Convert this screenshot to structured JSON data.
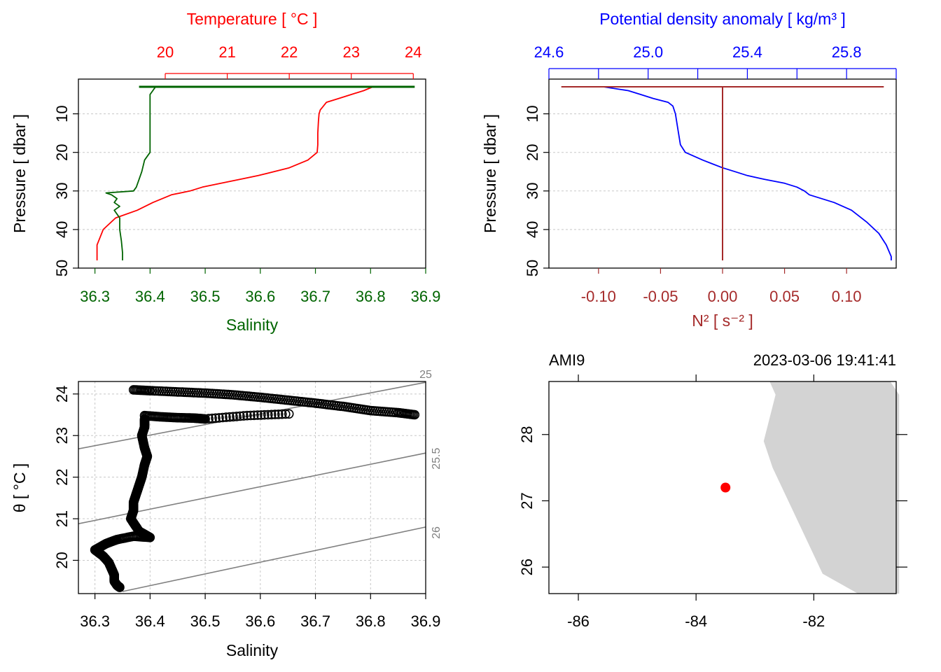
{
  "colors": {
    "temperature": "#ff0000",
    "salinity": "#006400",
    "density": "#0000ff",
    "n2": "#a52a2a",
    "isopycnal": "#808080",
    "land": "#d3d3d3",
    "station": "#ff0000"
  },
  "chart_data": [
    {
      "type": "line",
      "name": "profile-temperature-salinity",
      "top_axis_title": "Temperature [ °C ]",
      "bottom_axis_title": "Salinity",
      "ylabel": "Pressure [ dbar ]",
      "ylim": [
        50,
        1
      ],
      "y_ticks": [
        "10",
        "20",
        "30",
        "40",
        "50"
      ],
      "top_ticks": [
        "20",
        "21",
        "22",
        "23",
        "24"
      ],
      "bottom_ticks": [
        "36.3",
        "36.4",
        "36.5",
        "36.6",
        "36.7",
        "36.8",
        "36.9"
      ],
      "temperature_range": [
        18.6,
        24.2
      ],
      "salinity_range": [
        36.27,
        36.9
      ],
      "series": [
        {
          "name": "Temperature",
          "pressure": [
            3,
            4,
            5,
            6,
            7,
            8,
            9,
            10,
            12,
            15,
            18,
            20,
            22,
            24,
            26,
            28,
            29,
            30,
            31,
            33,
            35,
            37,
            40,
            44,
            48
          ],
          "values": [
            23.35,
            23.2,
            23.0,
            22.8,
            22.6,
            22.55,
            22.5,
            22.48,
            22.47,
            22.46,
            22.46,
            22.45,
            22.3,
            22.0,
            21.5,
            20.9,
            20.6,
            20.4,
            20.1,
            19.8,
            19.55,
            19.2,
            19.0,
            18.9,
            18.9
          ]
        },
        {
          "name": "Salinity",
          "pressure": [
            3,
            5,
            7,
            10,
            15,
            20,
            22,
            25,
            27,
            29,
            30,
            30.5,
            31,
            32,
            33,
            34,
            35,
            37,
            40,
            43,
            46,
            48
          ],
          "values": [
            36.41,
            36.4,
            36.4,
            36.4,
            36.4,
            36.4,
            36.39,
            36.385,
            36.38,
            36.375,
            36.37,
            36.32,
            36.33,
            36.34,
            36.335,
            36.345,
            36.335,
            36.345,
            36.345,
            36.348,
            36.35,
            36.35
          ]
        },
        {
          "name": "Salinity surface spike",
          "pressure": [
            3,
            3
          ],
          "values": [
            36.38,
            36.88
          ]
        }
      ]
    },
    {
      "type": "line",
      "name": "profile-density-n2",
      "top_axis_title": "Potential density anomaly [ kg/m³ ]",
      "bottom_axis_title": "N² [ s⁻² ]",
      "ylabel": "Pressure [ dbar ]",
      "ylim": [
        50,
        1
      ],
      "y_ticks": [
        "10",
        "20",
        "30",
        "40",
        "50"
      ],
      "top_ticks": [
        "24.6",
        "25.0",
        "25.4",
        "25.8"
      ],
      "bottom_ticks": [
        "-0.10",
        "-0.05",
        "0.00",
        "0.05",
        "0.10"
      ],
      "density_range": [
        24.6,
        26.0
      ],
      "n2_range": [
        -0.14,
        0.14
      ],
      "series": [
        {
          "name": "Potential density anomaly",
          "pressure": [
            3,
            4,
            5,
            6,
            7,
            8,
            10,
            14,
            18,
            20,
            22,
            24,
            25,
            26,
            27,
            28,
            29,
            30,
            31,
            32,
            33,
            35,
            38,
            41,
            44,
            47,
            48
          ],
          "values": [
            24.82,
            24.92,
            24.97,
            25.02,
            25.08,
            25.1,
            25.11,
            25.12,
            25.13,
            25.15,
            25.22,
            25.3,
            25.35,
            25.4,
            25.47,
            25.55,
            25.6,
            25.63,
            25.65,
            25.7,
            25.75,
            25.82,
            25.88,
            25.93,
            25.96,
            25.98,
            25.98
          ]
        },
        {
          "name": "N2",
          "pressure": [
            3,
            10,
            20,
            30,
            40,
            48
          ],
          "values": [
            0.0,
            0.0,
            0.0,
            0.0,
            0.0,
            0.0
          ]
        },
        {
          "name": "N2 surface spike",
          "pressure": [
            3,
            3
          ],
          "values": [
            -0.13,
            0.13
          ]
        }
      ]
    },
    {
      "type": "scatter",
      "name": "ts-diagram",
      "xlabel": "Salinity",
      "ylabel": "θ [ °C ]",
      "xlim": [
        36.27,
        36.9
      ],
      "ylim": [
        19.2,
        24.3
      ],
      "x_ticks": [
        "36.3",
        "36.4",
        "36.5",
        "36.6",
        "36.7",
        "36.8",
        "36.9"
      ],
      "y_ticks": [
        "20",
        "21",
        "22",
        "23",
        "24"
      ],
      "isopycnals": [
        {
          "label": "25",
          "x": [
            36.27,
            36.9
          ],
          "y": [
            22.68,
            24.28
          ]
        },
        {
          "label": "25.5",
          "x": [
            36.27,
            36.9
          ],
          "y": [
            20.88,
            22.58
          ]
        },
        {
          "label": "26",
          "x": [
            36.35,
            36.9
          ],
          "y": [
            19.25,
            20.8
          ]
        }
      ],
      "series": [
        {
          "name": "upper-surface-branch",
          "x": [
            36.37,
            36.4,
            36.45,
            36.5,
            36.55,
            36.6,
            36.65,
            36.7,
            36.75,
            36.8,
            36.85,
            36.88
          ],
          "y": [
            24.1,
            24.08,
            24.05,
            24.02,
            23.98,
            23.92,
            23.85,
            23.78,
            23.7,
            23.6,
            23.55,
            23.5
          ]
        },
        {
          "name": "lower-surface-branch",
          "x": [
            36.39,
            36.42,
            36.45,
            36.48,
            36.5,
            36.576,
            36.652
          ],
          "y": [
            23.48,
            23.45,
            23.43,
            23.42,
            23.4,
            23.48,
            23.52
          ]
        },
        {
          "name": "deep-column",
          "x": [
            36.39,
            36.39,
            36.385,
            36.39,
            36.395,
            36.39,
            36.385,
            36.38,
            36.375,
            36.37,
            36.37,
            36.365,
            36.38,
            36.4,
            36.37,
            36.34,
            36.32,
            36.3,
            36.315,
            36.325,
            36.33,
            36.335,
            36.335,
            36.34,
            36.345
          ],
          "y": [
            23.4,
            23.2,
            23.0,
            22.7,
            22.5,
            22.3,
            22.0,
            21.8,
            21.6,
            21.4,
            21.2,
            21.0,
            20.7,
            20.55,
            20.58,
            20.5,
            20.4,
            20.25,
            20.1,
            19.95,
            19.8,
            19.65,
            19.5,
            19.4,
            19.35
          ]
        }
      ]
    },
    {
      "type": "map",
      "name": "station-map",
      "station_name": "AMI9",
      "datetime": "2023-03-06 19:41:41",
      "lon_range": [
        -86.5,
        -80.6
      ],
      "lat_range": [
        25.6,
        28.8
      ],
      "x_ticks": [
        "-86",
        "-84",
        "-82"
      ],
      "y_ticks": [
        "26",
        "27",
        "28"
      ],
      "station": {
        "lon": -83.5,
        "lat": 27.2
      },
      "land": {
        "lon": [
          -82.7,
          -80.7,
          -80.55,
          -80.55,
          -81.25,
          -81.85,
          -82.7,
          -82.85,
          -82.65,
          -82.75
        ],
        "lat": [
          28.8,
          28.8,
          28.6,
          25.6,
          25.6,
          25.9,
          27.5,
          27.9,
          28.6,
          28.8
        ]
      }
    }
  ]
}
